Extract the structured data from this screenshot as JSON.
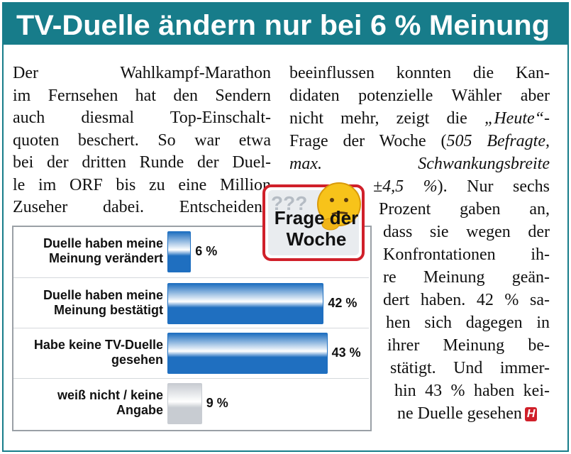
{
  "header": {
    "title": "TV-Duelle ändern nur bei 6 % Meinung"
  },
  "article": {
    "left_lines": [
      "Der Wahlkampf-Marathon",
      "im Fernsehen hat den Sendern",
      "auch diesmal Top-Einschalt-",
      "quoten beschert. So war etwa",
      "bei der dritten Runde der Duel-",
      "le im ORF bis zu eine Million",
      "Zuseher dabei. Entscheidend"
    ],
    "right_lines": [
      [
        "beeinflussen konnten die Kan-"
      ],
      [
        "didaten potenzielle Wähler aber"
      ],
      [
        "nicht mehr, zeigt die ",
        {
          "text": "„Heute“",
          "italic": true
        },
        "-"
      ],
      [
        "Frage der Woche (",
        {
          "text": "505 Befragte,",
          "italic": true
        }
      ],
      [
        {
          "text": "max. Schwankungsbreite",
          "italic": true
        }
      ],
      [
        {
          "text": "±4,5 %",
          "italic": true
        },
        "). Nur sechs"
      ],
      [
        "Prozent gaben an,"
      ],
      [
        "dass sie wegen der"
      ],
      [
        "Konfrontationen ih-"
      ],
      [
        "re Meinung geän-"
      ],
      [
        "dert haben. 42 % sa-"
      ],
      [
        "hen sich dagegen in"
      ],
      [
        "ihrer Meinung be-"
      ],
      [
        "stätigt. Und immer-"
      ],
      [
        "hin 43 % haben kei-"
      ],
      [
        "ne Duelle gesehen"
      ]
    ],
    "source_logo": "H"
  },
  "badge": {
    "marks": "???",
    "label": "Frage der Woche"
  },
  "chart_data": {
    "type": "bar",
    "orientation": "horizontal",
    "categories": [
      "Duelle haben meine Meinung verändert",
      "Duelle haben meine Meinung bestätigt",
      "Habe keine TV-Duelle gesehen",
      "weiß nicht / keine Angabe"
    ],
    "values": [
      6,
      42,
      43,
      9
    ],
    "value_labels": [
      "6 %",
      "42 %",
      "43 %",
      "9 %"
    ],
    "colors": [
      "#1f6fc0",
      "#1f6fc0",
      "#1f6fc0",
      "#c8ccd2"
    ]
  }
}
